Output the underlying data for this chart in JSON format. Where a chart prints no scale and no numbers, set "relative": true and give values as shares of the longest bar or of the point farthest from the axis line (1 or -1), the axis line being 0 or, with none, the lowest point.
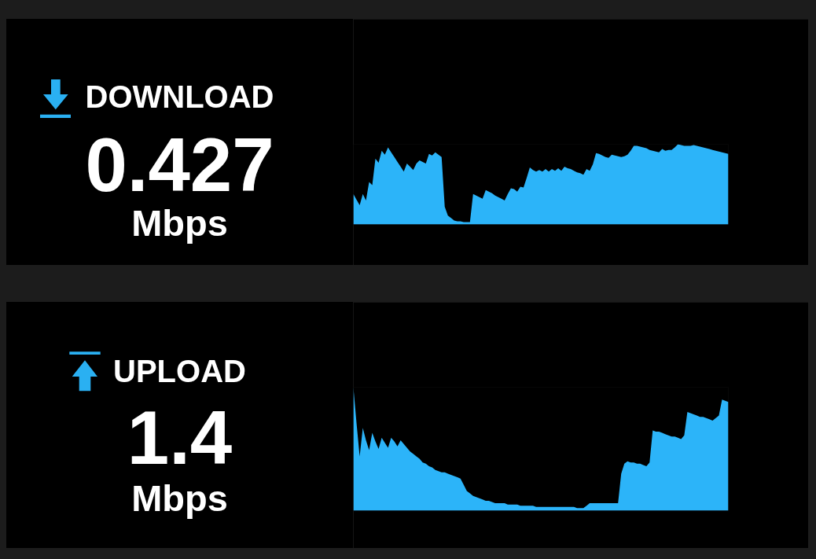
{
  "chart_data": [
    {
      "type": "area",
      "title": "DOWNLOAD",
      "annotations": [
        "0.427",
        "Mbps"
      ],
      "relative": true,
      "categories": [
        null,
        null,
        null,
        null,
        null,
        null,
        null,
        null,
        null,
        null,
        null,
        null,
        null,
        null,
        null,
        null,
        null,
        null,
        null,
        null,
        null,
        null,
        null,
        null,
        null,
        null,
        null,
        null,
        null,
        null,
        null,
        null,
        null,
        null,
        null,
        null,
        null,
        null,
        null,
        null,
        null,
        null,
        null,
        null,
        null,
        null,
        null,
        null,
        null,
        null,
        null,
        null,
        null,
        null,
        null,
        null,
        null,
        null,
        null,
        null,
        null,
        null,
        null,
        null,
        null,
        null,
        null,
        null,
        null,
        null,
        null,
        null,
        null,
        null,
        null,
        null,
        null,
        null,
        null,
        null,
        null,
        null,
        null,
        null,
        null,
        null,
        null,
        null,
        null,
        null,
        null,
        null,
        null,
        null,
        null,
        null,
        null,
        null,
        null,
        null,
        null,
        null,
        null,
        null,
        null,
        null,
        null,
        null,
        null,
        null,
        null,
        null,
        null,
        null,
        null,
        null,
        null,
        null,
        null,
        null
      ],
      "series": [
        {
          "color": "#2cb4f9",
          "values": [
            0.38,
            0.31,
            0.24,
            0.38,
            0.3,
            0.53,
            0.49,
            0.82,
            0.77,
            0.92,
            0.87,
            0.96,
            0.9,
            0.84,
            0.78,
            0.72,
            0.66,
            0.76,
            0.72,
            0.68,
            0.76,
            0.8,
            0.78,
            0.76,
            0.88,
            0.86,
            0.9,
            0.87,
            0.84,
            0.22,
            0.11,
            0.08,
            0.05,
            0.04,
            0.04,
            0.03,
            0.03,
            0.03,
            0.38,
            0.36,
            0.34,
            0.32,
            0.43,
            0.41,
            0.39,
            0.36,
            0.34,
            0.32,
            0.3,
            0.38,
            0.45,
            0.44,
            0.41,
            0.47,
            0.46,
            0.58,
            0.71,
            0.68,
            0.66,
            0.68,
            0.66,
            0.69,
            0.66,
            0.69,
            0.67,
            0.7,
            0.67,
            0.72,
            0.7,
            0.69,
            0.67,
            0.65,
            0.64,
            0.62,
            0.69,
            0.67,
            0.75,
            0.89,
            0.88,
            0.86,
            0.84,
            0.83,
            0.87,
            0.86,
            0.85,
            0.84,
            0.85,
            0.87,
            0.92,
            0.98,
            0.98,
            0.97,
            0.96,
            0.95,
            0.93,
            0.92,
            0.91,
            0.9,
            0.94,
            0.92,
            0.93,
            0.93,
            0.96,
            1.0,
            0.99,
            0.98,
            0.98,
            0.98,
            0.99,
            0.98,
            0.97,
            0.96,
            0.95,
            0.94,
            0.93,
            0.92,
            0.91,
            0.9,
            0.89,
            0.88
          ]
        }
      ]
    },
    {
      "type": "area",
      "title": "UPLOAD",
      "annotations": [
        "1.4",
        "Mbps"
      ],
      "relative": true,
      "categories": [
        null,
        null,
        null,
        null,
        null,
        null,
        null,
        null,
        null,
        null,
        null,
        null,
        null,
        null,
        null,
        null,
        null,
        null,
        null,
        null,
        null,
        null,
        null,
        null,
        null,
        null,
        null,
        null,
        null,
        null,
        null,
        null,
        null,
        null,
        null,
        null,
        null,
        null,
        null,
        null,
        null,
        null,
        null,
        null,
        null,
        null,
        null,
        null,
        null,
        null,
        null,
        null,
        null,
        null,
        null,
        null,
        null,
        null,
        null,
        null,
        null,
        null,
        null,
        null,
        null,
        null,
        null,
        null,
        null,
        null,
        null,
        null,
        null,
        null,
        null,
        null,
        null,
        null,
        null,
        null,
        null,
        null,
        null,
        null,
        null,
        null,
        null,
        null,
        null,
        null,
        null,
        null,
        null,
        null,
        null,
        null,
        null,
        null,
        null,
        null,
        null,
        null,
        null,
        null,
        null,
        null,
        null,
        null,
        null,
        null,
        null,
        null,
        null,
        null,
        null,
        null,
        null,
        null,
        null,
        null
      ],
      "series": [
        {
          "color": "#2cb4f9",
          "values": [
            1.0,
            0.71,
            0.44,
            0.67,
            0.57,
            0.49,
            0.63,
            0.56,
            0.5,
            0.59,
            0.55,
            0.51,
            0.59,
            0.56,
            0.52,
            0.57,
            0.54,
            0.51,
            0.48,
            0.46,
            0.44,
            0.42,
            0.39,
            0.38,
            0.36,
            0.35,
            0.33,
            0.32,
            0.31,
            0.31,
            0.3,
            0.29,
            0.28,
            0.27,
            0.26,
            0.21,
            0.16,
            0.14,
            0.12,
            0.11,
            0.1,
            0.09,
            0.08,
            0.08,
            0.07,
            0.06,
            0.06,
            0.06,
            0.06,
            0.05,
            0.05,
            0.05,
            0.05,
            0.04,
            0.04,
            0.04,
            0.04,
            0.04,
            0.03,
            0.03,
            0.03,
            0.03,
            0.03,
            0.03,
            0.03,
            0.03,
            0.03,
            0.03,
            0.03,
            0.03,
            0.03,
            0.02,
            0.02,
            0.02,
            0.04,
            0.06,
            0.06,
            0.06,
            0.06,
            0.06,
            0.06,
            0.06,
            0.06,
            0.06,
            0.06,
            0.3,
            0.38,
            0.4,
            0.39,
            0.39,
            0.38,
            0.38,
            0.37,
            0.36,
            0.39,
            0.65,
            0.64,
            0.64,
            0.63,
            0.62,
            0.61,
            0.6,
            0.6,
            0.59,
            0.58,
            0.61,
            0.8,
            0.79,
            0.78,
            0.77,
            0.76,
            0.76,
            0.75,
            0.74,
            0.73,
            0.75,
            0.77,
            0.9,
            0.89,
            0.88
          ]
        }
      ]
    }
  ]
}
